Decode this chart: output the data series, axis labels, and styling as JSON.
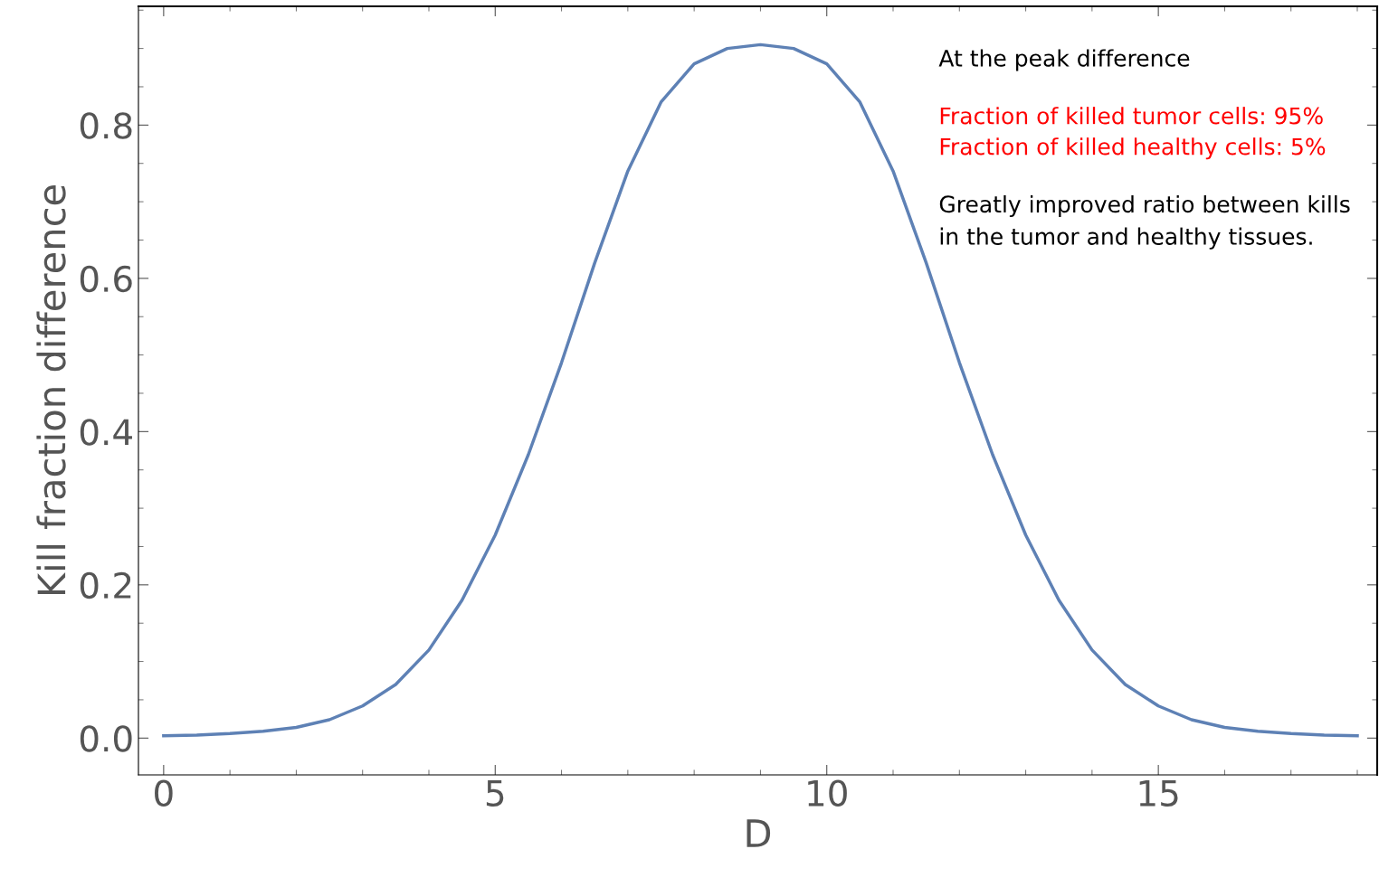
{
  "chart_data": {
    "type": "line",
    "xlabel": "D",
    "ylabel": "Kill fraction difference",
    "x": [
      0,
      0.5,
      1,
      1.5,
      2,
      2.5,
      3,
      3.5,
      4,
      4.5,
      5,
      5.5,
      6,
      6.5,
      7,
      7.5,
      8,
      8.5,
      9,
      9.5,
      10,
      10.5,
      11,
      11.5,
      12,
      12.5,
      13,
      13.5,
      14,
      14.5,
      15,
      15.5,
      16,
      16.5,
      17,
      17.5,
      18
    ],
    "series": [
      {
        "color": "#5e81b5",
        "values": [
          0.003,
          0.004,
          0.006,
          0.009,
          0.014,
          0.024,
          0.042,
          0.07,
          0.115,
          0.18,
          0.265,
          0.37,
          0.49,
          0.62,
          0.74,
          0.83,
          0.88,
          0.9,
          0.905,
          0.9,
          0.88,
          0.83,
          0.74,
          0.62,
          0.49,
          0.37,
          0.265,
          0.18,
          0.115,
          0.07,
          0.042,
          0.024,
          0.014,
          0.009,
          0.006,
          0.004,
          0.003
        ]
      }
    ],
    "xlim": [
      -0.38,
      18.3
    ],
    "ylim": [
      -0.048,
      0.955
    ],
    "xticks": [
      0,
      5,
      10,
      15
    ],
    "yticks": [
      {
        "value": 0,
        "label": "0.0"
      },
      {
        "value": 0.2,
        "label": "0.2"
      },
      {
        "value": 0.4,
        "label": "0.4"
      },
      {
        "value": 0.6,
        "label": "0.6"
      },
      {
        "value": 0.8,
        "label": "0.8"
      }
    ],
    "grid": false,
    "marker": "none",
    "line_style": "solid",
    "annotations": [
      "At the peak difference",
      "Fraction of killed tumor cells: 95%",
      "Fraction of killed healthy cells: 5%",
      "Greatly improved ratio between kills",
      "in the tumor and healthy tissues."
    ]
  }
}
